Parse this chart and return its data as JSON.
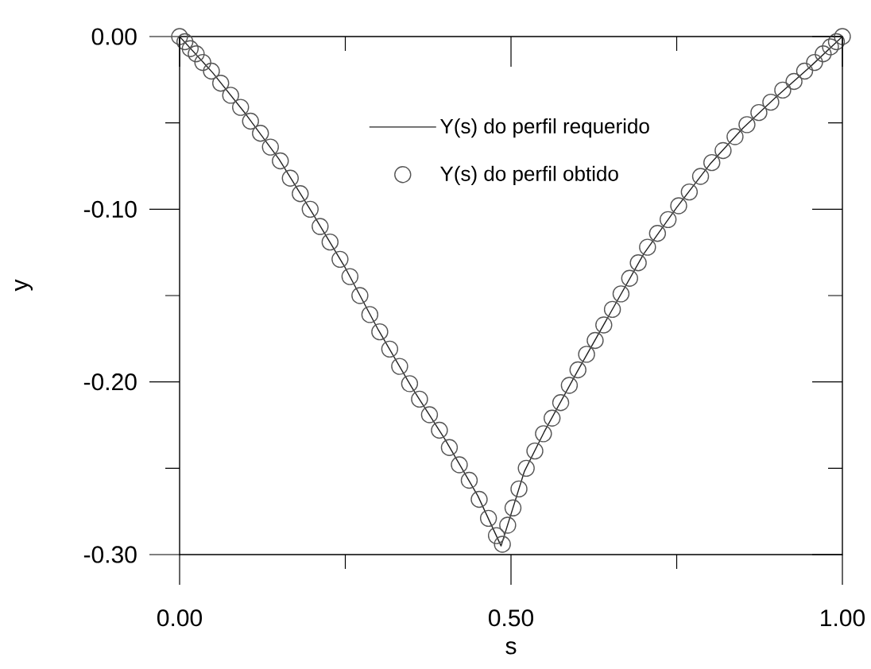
{
  "chart_data": {
    "type": "line",
    "xlabel": "s",
    "ylabel": "y",
    "xlim": [
      0,
      1
    ],
    "ylim": [
      -0.3,
      0
    ],
    "xticks": [
      {
        "value": 0,
        "label": "0.00"
      },
      {
        "value": 0.25,
        "label": null
      },
      {
        "value": 0.5,
        "label": "0.50"
      },
      {
        "value": 0.75,
        "label": null
      },
      {
        "value": 1,
        "label": "1.00"
      }
    ],
    "yticks": [
      {
        "value": -0.3,
        "label": "-0.30"
      },
      {
        "value": -0.25,
        "label": null
      },
      {
        "value": -0.2,
        "label": "-0.20"
      },
      {
        "value": -0.15,
        "label": null
      },
      {
        "value": -0.1,
        "label": "-0.10"
      },
      {
        "value": -0.05,
        "label": null
      },
      {
        "value": 0,
        "label": "0.00"
      }
    ],
    "legend": "top",
    "series": [
      {
        "name": "Y(s) do perfil requerido",
        "color": "#222222",
        "marker": "none",
        "line_style": "solid",
        "x": [
          0,
          0.05,
          0.1,
          0.15,
          0.2,
          0.25,
          0.3,
          0.35,
          0.4,
          0.45,
          0.485,
          0.52,
          0.55,
          0.6,
          0.65,
          0.7,
          0.75,
          0.8,
          0.85,
          0.9,
          0.95,
          1
        ],
        "values": [
          0,
          -0.021,
          -0.045,
          -0.071,
          -0.102,
          -0.134,
          -0.17,
          -0.203,
          -0.233,
          -0.266,
          -0.295,
          -0.252,
          -0.229,
          -0.194,
          -0.16,
          -0.126,
          -0.099,
          -0.074,
          -0.053,
          -0.035,
          -0.018,
          0
        ]
      },
      {
        "name": "Y(s) do perfil obtido",
        "type": "scatter",
        "color": "#555555",
        "marker": "circle",
        "x": [
          0,
          0.008,
          0.016,
          0.025,
          0.035,
          0.048,
          0.062,
          0.077,
          0.092,
          0.107,
          0.122,
          0.137,
          0.152,
          0.167,
          0.182,
          0.197,
          0.212,
          0.227,
          0.242,
          0.257,
          0.272,
          0.287,
          0.302,
          0.317,
          0.332,
          0.347,
          0.362,
          0.377,
          0.392,
          0.407,
          0.422,
          0.437,
          0.452,
          0.466,
          0.478,
          0.487,
          0.495,
          0.503,
          0.512,
          0.523,
          0.536,
          0.549,
          0.562,
          0.575,
          0.588,
          0.601,
          0.614,
          0.627,
          0.64,
          0.653,
          0.666,
          0.679,
          0.692,
          0.706,
          0.721,
          0.737,
          0.753,
          0.769,
          0.786,
          0.803,
          0.82,
          0.838,
          0.856,
          0.874,
          0.892,
          0.91,
          0.927,
          0.943,
          0.958,
          0.971,
          0.982,
          0.991,
          1
        ],
        "values": [
          0,
          -0.003,
          -0.007,
          -0.01,
          -0.015,
          -0.02,
          -0.027,
          -0.034,
          -0.041,
          -0.049,
          -0.056,
          -0.064,
          -0.072,
          -0.082,
          -0.091,
          -0.1,
          -0.11,
          -0.119,
          -0.129,
          -0.139,
          -0.15,
          -0.161,
          -0.171,
          -0.181,
          -0.191,
          -0.201,
          -0.21,
          -0.219,
          -0.228,
          -0.238,
          -0.248,
          -0.257,
          -0.268,
          -0.279,
          -0.289,
          -0.294,
          -0.283,
          -0.273,
          -0.262,
          -0.25,
          -0.24,
          -0.23,
          -0.221,
          -0.212,
          -0.202,
          -0.193,
          -0.184,
          -0.176,
          -0.167,
          -0.158,
          -0.149,
          -0.14,
          -0.131,
          -0.122,
          -0.114,
          -0.106,
          -0.098,
          -0.09,
          -0.081,
          -0.073,
          -0.066,
          -0.058,
          -0.051,
          -0.044,
          -0.038,
          -0.031,
          -0.026,
          -0.02,
          -0.015,
          -0.01,
          -0.006,
          -0.003,
          0
        ]
      }
    ]
  }
}
